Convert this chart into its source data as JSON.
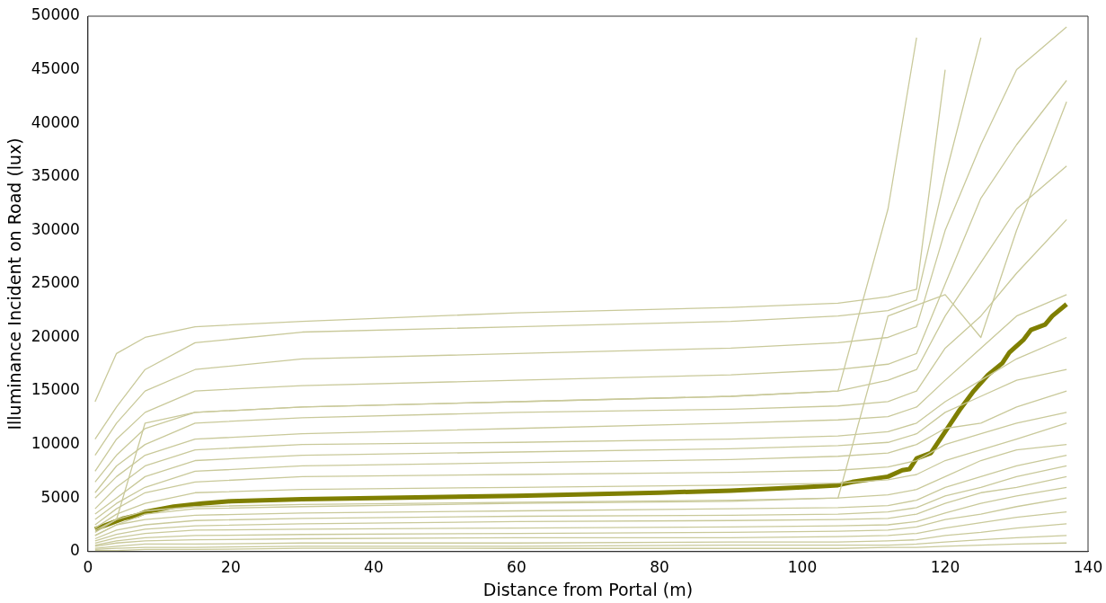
{
  "chart_data": {
    "type": "line",
    "xlabel": "Distance from Portal (m)",
    "ylabel": "Illuminance Incident on Road (lux)",
    "xlim": [
      0,
      140
    ],
    "xticks": [
      0,
      20,
      40,
      60,
      80,
      100,
      120,
      140
    ],
    "ylim": [
      0,
      50000
    ],
    "yticks": [
      0,
      5000,
      10000,
      15000,
      20000,
      25000,
      30000,
      35000,
      40000,
      45000,
      50000
    ],
    "grid": false,
    "legend": false,
    "marker": "none",
    "x": [
      1,
      4,
      8,
      15,
      30,
      60,
      90,
      105,
      112,
      116,
      120,
      125,
      130,
      137
    ],
    "series": [
      {
        "color": "#c9c99a",
        "values": [
          14000,
          18500,
          20000,
          21000,
          21500,
          22300,
          22800,
          23200,
          23800,
          24500,
          45000,
          null,
          null,
          null
        ]
      },
      {
        "color": "#c9c99a",
        "values": [
          10500,
          13500,
          17000,
          19500,
          20500,
          21000,
          21500,
          22000,
          22500,
          23500,
          35000,
          48000,
          null,
          null
        ]
      },
      {
        "color": "#c9c99a",
        "values": [
          9000,
          12000,
          15000,
          17000,
          18000,
          18500,
          19000,
          19500,
          20000,
          21000,
          30000,
          38000,
          45000,
          49000
        ]
      },
      {
        "color": "#c9c99a",
        "values": [
          7500,
          10500,
          13000,
          15000,
          15500,
          16000,
          16500,
          17000,
          17500,
          18500,
          25000,
          33000,
          38000,
          44000
        ]
      },
      {
        "color": "#c9c99a",
        "values": [
          6500,
          9000,
          11500,
          13000,
          13500,
          14000,
          14500,
          15000,
          16000,
          17000,
          22000,
          27000,
          32000,
          36000
        ]
      },
      {
        "color": "#c9c99a",
        "values": [
          5500,
          8000,
          10000,
          12000,
          12500,
          13000,
          13300,
          13600,
          14000,
          15000,
          19000,
          22000,
          26000,
          31000
        ]
      },
      {
        "color": "#c9c99a",
        "values": [
          5000,
          7000,
          9000,
          10500,
          11000,
          11500,
          12000,
          12300,
          12600,
          13500,
          16000,
          19000,
          22000,
          24000
        ]
      },
      {
        "color": "#c9c99a",
        "values": [
          4000,
          6000,
          8000,
          9500,
          10000,
          10200,
          10500,
          10800,
          11200,
          12000,
          14000,
          16000,
          18000,
          20000
        ]
      },
      {
        "color": "#c9c99a",
        "values": [
          3500,
          5000,
          7000,
          8500,
          9000,
          9300,
          9600,
          9900,
          10200,
          11000,
          13000,
          14500,
          16000,
          17000
        ]
      },
      {
        "color": "#c9c99a",
        "values": [
          3000,
          4500,
          6000,
          7500,
          8000,
          8300,
          8600,
          8900,
          9200,
          10000,
          11500,
          12000,
          13500,
          15000
        ]
      },
      {
        "color": "#c9c99a",
        "values": [
          2500,
          4000,
          5500,
          6500,
          7000,
          7200,
          7400,
          7600,
          7900,
          8500,
          10000,
          11000,
          12000,
          13000
        ]
      },
      {
        "color": "#c9c99a",
        "values": [
          2200,
          3500,
          4500,
          5500,
          5800,
          6000,
          6200,
          6400,
          6700,
          7200,
          8500,
          9500,
          10500,
          12000
        ]
      },
      {
        "color": "#c9c99a",
        "values": [
          1800,
          3000,
          3800,
          4200,
          4400,
          4600,
          4800,
          5000,
          5300,
          5800,
          7000,
          8500,
          9500,
          10000
        ]
      },
      {
        "color": "#c9c99a",
        "values": [
          1500,
          2500,
          3000,
          3400,
          3600,
          3800,
          4000,
          4100,
          4300,
          4800,
          6000,
          7000,
          8000,
          9000
        ]
      },
      {
        "color": "#c9c99a",
        "values": [
          1200,
          2000,
          2500,
          2900,
          3100,
          3300,
          3400,
          3500,
          3700,
          4100,
          5200,
          6000,
          7000,
          8000
        ]
      },
      {
        "color": "#c9c99a",
        "values": [
          1000,
          1600,
          2100,
          2400,
          2600,
          2800,
          2900,
          3000,
          3100,
          3500,
          4500,
          5500,
          6000,
          7000
        ]
      },
      {
        "color": "#c9c99a",
        "values": [
          800,
          1300,
          1700,
          2000,
          2100,
          2200,
          2300,
          2400,
          2500,
          2800,
          3600,
          4500,
          5200,
          6000
        ]
      },
      {
        "color": "#c9c99a",
        "values": [
          600,
          1000,
          1300,
          1500,
          1600,
          1700,
          1800,
          1900,
          2000,
          2300,
          3000,
          3500,
          4200,
          5000
        ]
      },
      {
        "color": "#c9c99a",
        "values": [
          500,
          800,
          1000,
          1100,
          1200,
          1300,
          1300,
          1400,
          1500,
          1700,
          2200,
          2700,
          3200,
          3700
        ]
      },
      {
        "color": "#c9c99a",
        "values": [
          300,
          500,
          700,
          700,
          800,
          800,
          900,
          900,
          1000,
          1100,
          1500,
          1800,
          2200,
          2600
        ]
      },
      {
        "color": "#c9c99a",
        "values": [
          200,
          300,
          400,
          400,
          500,
          500,
          600,
          600,
          600,
          700,
          900,
          1100,
          1300,
          1500
        ]
      },
      {
        "color": "#c9c99a",
        "values": [
          100,
          100,
          200,
          200,
          300,
          300,
          300,
          300,
          400,
          400,
          500,
          600,
          700,
          800
        ]
      },
      {
        "color": "#c9c99a",
        "values": [
          2000,
          3000,
          12000,
          13000,
          13500,
          14000,
          14500,
          15000,
          32000,
          48000,
          null,
          null,
          null,
          null
        ]
      },
      {
        "color": "#c9c99a",
        "values": [
          1500,
          2500,
          3500,
          4000,
          4200,
          4500,
          4700,
          5000,
          22000,
          23000,
          24000,
          20000,
          30000,
          42000
        ]
      },
      {
        "color": "#7f7f00",
        "x": [
          1,
          3,
          5,
          7,
          8,
          12,
          16,
          20,
          30,
          40,
          60,
          80,
          90,
          100,
          105,
          107,
          110,
          112,
          114,
          115,
          116,
          118,
          120,
          122,
          124,
          126,
          128,
          129,
          131,
          132,
          134,
          135,
          137
        ],
        "values": [
          2100,
          2600,
          3100,
          3400,
          3700,
          4200,
          4500,
          4700,
          4900,
          5000,
          5200,
          5500,
          5700,
          6000,
          6200,
          6500,
          6800,
          7000,
          7600,
          7700,
          8700,
          9200,
          11200,
          13200,
          15000,
          16500,
          17600,
          18600,
          19800,
          20700,
          21200,
          22000,
          23100
        ]
      }
    ]
  }
}
